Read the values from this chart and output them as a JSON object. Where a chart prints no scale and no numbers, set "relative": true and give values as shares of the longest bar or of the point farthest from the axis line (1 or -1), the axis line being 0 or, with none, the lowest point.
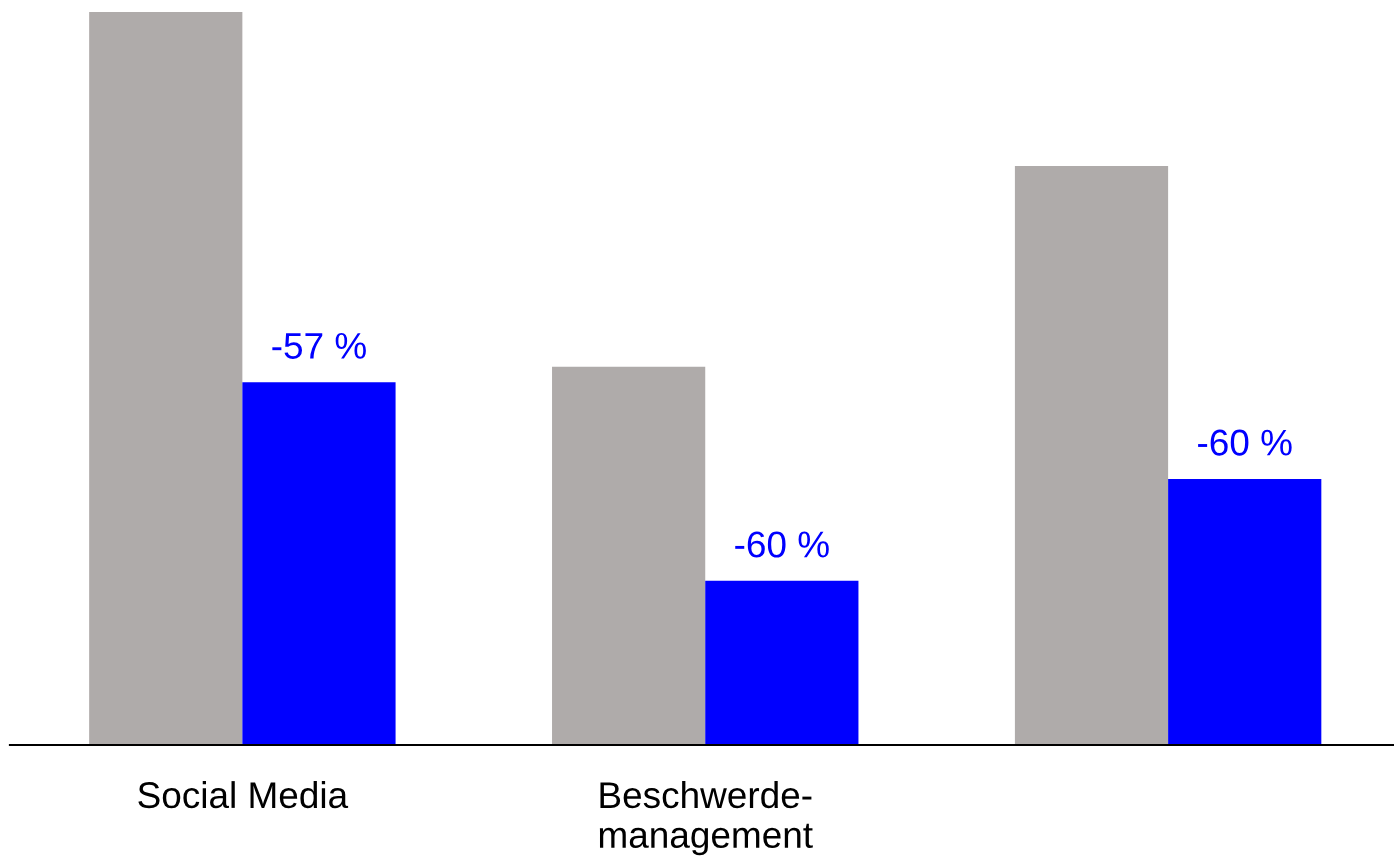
{
  "chart_data": {
    "type": "bar",
    "relative": true,
    "categories": [
      "Social Media",
      "Beschwerde-\nmanagement",
      null
    ],
    "series": [
      {
        "color": "#afabaa",
        "values": [
          1.0,
          0.516,
          0.79
        ]
      },
      {
        "color": "#0000ff",
        "values": [
          0.495,
          0.224,
          0.363
        ]
      }
    ],
    "annotations": [
      {
        "text": "-57 %",
        "x": "Social Media",
        "y": 0.495
      },
      {
        "text": "-60 %",
        "x": "Beschwerde-\nmanagement",
        "y": 0.224
      },
      {
        "text": "-60 %",
        "y": 0.363
      }
    ]
  }
}
